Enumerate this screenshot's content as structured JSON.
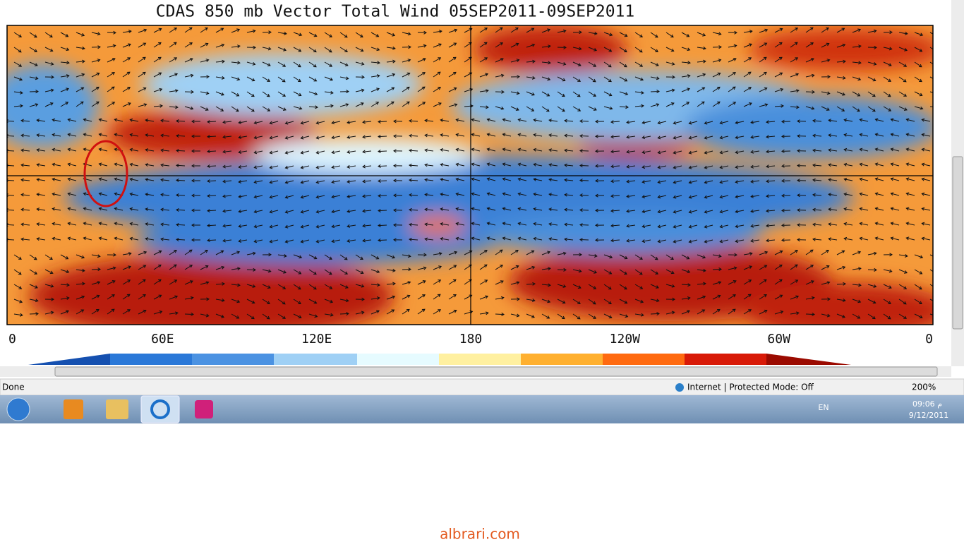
{
  "map": {
    "title": "CDAS 850 mb Vector Total Wind 05SEP2011-09SEP2011",
    "x_labels": [
      "0",
      "60E",
      "120E",
      "180",
      "120W",
      "60W",
      "0"
    ]
  },
  "status_bar": {
    "status": "Done",
    "zone": "Internet | Protected Mode: Off",
    "zoom": "200%"
  },
  "taskbar": {
    "language": "EN",
    "time": "09:06 م",
    "date": "9/12/2011"
  },
  "watermark": "albrari.com"
}
